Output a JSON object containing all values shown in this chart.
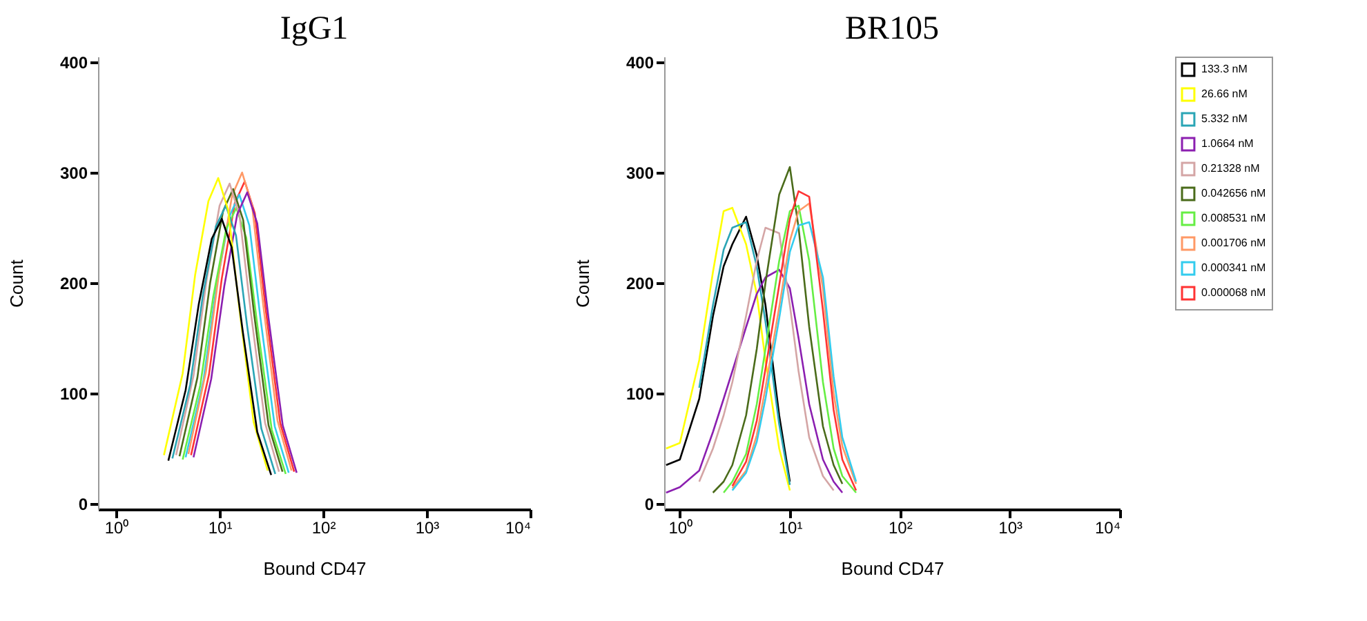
{
  "chart_data": [
    {
      "type": "line",
      "title": "IgG1",
      "xlabel": "Bound CD47",
      "ylabel": "Count",
      "log": "x",
      "grid": false,
      "xlim": [
        0.67,
        10000
      ],
      "ylim": [
        -5,
        405
      ],
      "xticks": [
        {
          "value": 1,
          "label": "10⁰"
        },
        {
          "value": 10,
          "label": "10¹"
        },
        {
          "value": 100,
          "label": "10²"
        },
        {
          "value": 1000,
          "label": "10³"
        },
        {
          "value": 10000,
          "label": "10⁴"
        }
      ],
      "yticks": [
        0,
        100,
        200,
        300,
        400
      ],
      "series": [
        {
          "color": "#ff3333",
          "x": [
            5.3,
            7.9,
            10.5,
            14,
            17.5,
            21.9,
            28,
            38.5,
            52.5
          ],
          "values": [
            44,
            117,
            204,
            272,
            292,
            263,
            175,
            73,
            29
          ]
        },
        {
          "color": "#33ccee",
          "x": [
            4.7,
            7,
            9.3,
            12.4,
            15.5,
            19.4,
            24.8,
            34.1,
            46.5
          ],
          "values": [
            42,
            112,
            196,
            260,
            280,
            252,
            168,
            70,
            28
          ]
        },
        {
          "color": "#ff9966",
          "x": [
            5,
            7.4,
            9.9,
            13.2,
            16.5,
            20.6,
            26.4,
            36.3,
            49.5
          ],
          "values": [
            45,
            120,
            210,
            279,
            300,
            270,
            180,
            75,
            30
          ]
        },
        {
          "color": "#66ee44",
          "x": [
            4.4,
            6.5,
            8.7,
            11.6,
            14.5,
            18.1,
            23.2,
            31.9,
            43.5
          ],
          "values": [
            40,
            107,
            188,
            249,
            268,
            241,
            161,
            67,
            27
          ]
        },
        {
          "color": "#4a6b1a",
          "x": [
            4.1,
            6.1,
            8.1,
            10.8,
            13.5,
            16.9,
            21.6,
            29.7,
            40.5
          ],
          "values": [
            43,
            114,
            200,
            265,
            285,
            257,
            171,
            71,
            29
          ]
        },
        {
          "color": "#d4a5a5",
          "x": [
            3.8,
            5.6,
            7.5,
            10,
            12.5,
            15.6,
            20,
            27.5,
            37.5
          ],
          "values": [
            44,
            116,
            203,
            270,
            290,
            261,
            174,
            73,
            29
          ]
        },
        {
          "color": "#8b1fb0",
          "x": [
            5.6,
            8.3,
            11.1,
            14.8,
            18.5,
            23.1,
            29.6,
            40.7,
            55.5
          ],
          "values": [
            42,
            113,
            197,
            262,
            282,
            254,
            169,
            71,
            28
          ]
        },
        {
          "color": "#2aa5b5",
          "x": [
            3.5,
            5.2,
            6.9,
            9.2,
            11.5,
            14.4,
            18.4,
            25.3,
            34.5
          ],
          "values": [
            41,
            108,
            189,
            251,
            270,
            243,
            162,
            68,
            27
          ]
        },
        {
          "color": "#ffff00",
          "x": [
            2.9,
            4.4,
            5.8,
            7.8,
            9.7,
            12.1,
            15.5,
            21.3,
            29.1
          ],
          "values": [
            44,
            118,
            207,
            274,
            295,
            266,
            177,
            74,
            30
          ]
        },
        {
          "color": "#000000",
          "x": [
            3.2,
            4.7,
            6.3,
            8.4,
            10.5,
            13.1,
            16.8,
            23.1,
            31.5
          ],
          "values": [
            39,
            103,
            181,
            240,
            258,
            232,
            155,
            65,
            26
          ]
        }
      ]
    },
    {
      "type": "line",
      "title": "BR105",
      "xlabel": "Bound CD47",
      "ylabel": "Count",
      "log": "x",
      "grid": false,
      "legend": "right",
      "xlim": [
        0.72,
        10000
      ],
      "ylim": [
        -5,
        405
      ],
      "xticks": [
        {
          "value": 1,
          "label": "10⁰"
        },
        {
          "value": 10,
          "label": "10¹"
        },
        {
          "value": 100,
          "label": "10²"
        },
        {
          "value": 1000,
          "label": "10³"
        },
        {
          "value": 10000,
          "label": "10⁴"
        }
      ],
      "yticks": [
        0,
        100,
        200,
        300,
        400
      ],
      "x": [
        0.75,
        1,
        1.5,
        2,
        2.5,
        3,
        4,
        5,
        6,
        8,
        10,
        12,
        15,
        20,
        25,
        30,
        40
      ],
      "series": [
        {
          "name": "133.3 nM",
          "color": "#000000",
          "values": [
            35,
            40,
            95,
            170,
            215,
            235,
            260,
            225,
            180,
            80,
            20,
            null,
            null,
            null,
            null,
            null,
            null
          ]
        },
        {
          "name": "26.66 nM",
          "color": "#ffff00",
          "values": [
            50,
            55,
            130,
            210,
            265,
            268,
            235,
            190,
            130,
            50,
            12,
            null,
            null,
            null,
            null,
            null,
            null
          ]
        },
        {
          "name": "5.332 nM",
          "color": "#2aa5b5",
          "values": [
            null,
            null,
            105,
            180,
            230,
            250,
            255,
            215,
            165,
            72,
            17,
            null,
            null,
            null,
            null,
            null,
            null
          ]
        },
        {
          "name": "1.0664 nM",
          "color": "#8b1fb0",
          "values": [
            10,
            15,
            30,
            65,
            95,
            120,
            160,
            190,
            205,
            212,
            195,
            150,
            90,
            40,
            20,
            10,
            null
          ]
        },
        {
          "name": "0.21328 nM",
          "color": "#d4a5a5",
          "values": [
            null,
            null,
            20,
            50,
            80,
            110,
            170,
            220,
            250,
            245,
            180,
            120,
            60,
            25,
            12,
            null,
            null
          ]
        },
        {
          "name": "0.042656 nM",
          "color": "#4a6b1a",
          "values": [
            null,
            null,
            null,
            10,
            20,
            35,
            80,
            140,
            200,
            280,
            305,
            250,
            160,
            70,
            35,
            18,
            null
          ]
        },
        {
          "name": "0.008531 nM",
          "color": "#66ee44",
          "values": [
            null,
            null,
            null,
            null,
            10,
            20,
            45,
            90,
            140,
            220,
            265,
            270,
            220,
            110,
            50,
            25,
            10
          ]
        },
        {
          "name": "0.001706 nM",
          "color": "#ff9966",
          "values": [
            null,
            null,
            null,
            null,
            null,
            14,
            30,
            62,
            105,
            178,
            238,
            265,
            272,
            195,
            100,
            52,
            18
          ]
        },
        {
          "name": "0.000341 nM",
          "color": "#33ccee",
          "values": [
            null,
            null,
            null,
            null,
            null,
            12,
            28,
            56,
            95,
            168,
            228,
            252,
            255,
            205,
            115,
            60,
            20
          ]
        },
        {
          "name": "0.000068 nM",
          "color": "#ff3333",
          "values": [
            null,
            null,
            null,
            null,
            null,
            16,
            38,
            75,
            122,
            198,
            258,
            283,
            278,
            175,
            85,
            40,
            12
          ]
        }
      ]
    }
  ]
}
